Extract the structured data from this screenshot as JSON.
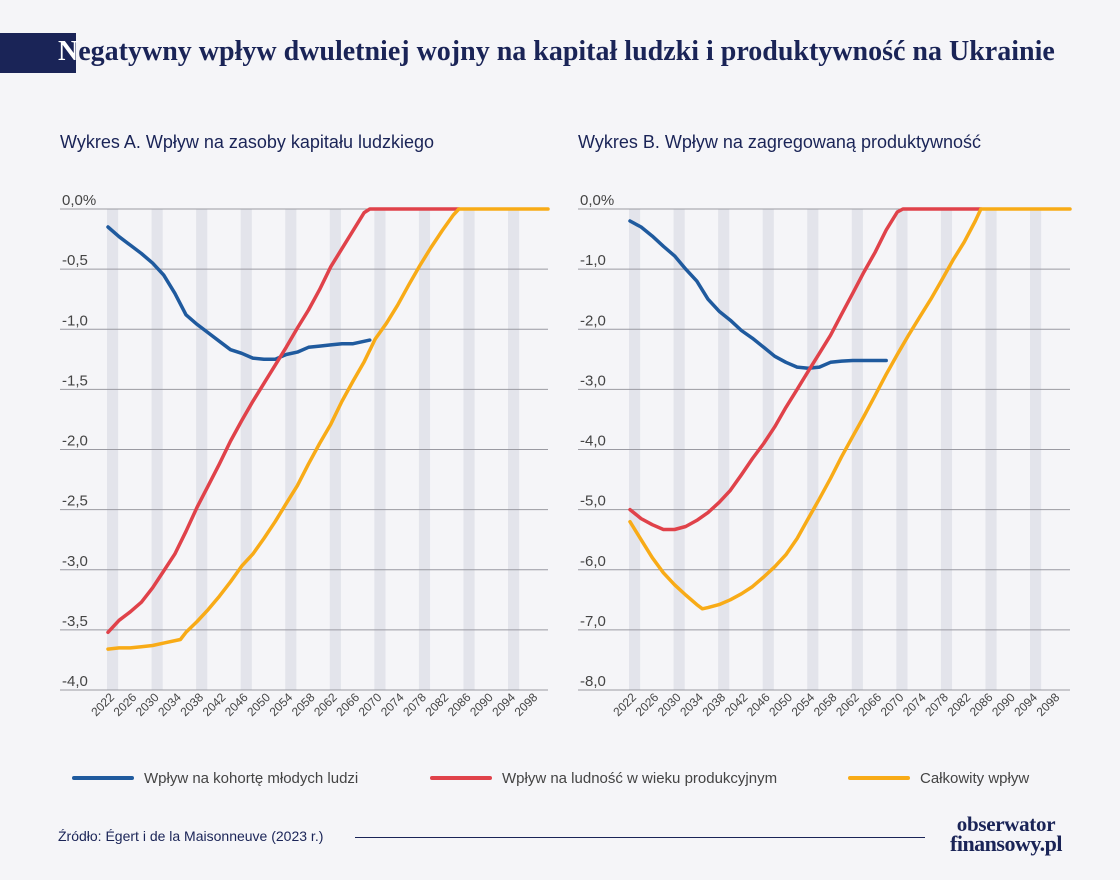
{
  "title": {
    "first_letter": "N",
    "rest": "egatywny wpływ dwuletniej wojny na kapitał ludzki i produktywność na Ukrainie"
  },
  "colors": {
    "title_bar": "#1a2457",
    "youth": "#1f5a9e",
    "working": "#e0424a",
    "total": "#f8ab17",
    "grid": "#9a9aa2",
    "band": "#e3e4eb"
  },
  "legend": {
    "youth": "Wpływ na kohortę młodych ludzi",
    "working": "Wpływ na ludność w wieku produkcyjnym",
    "total": "Całkowity wpływ"
  },
  "source": "Źródło: Égert i de la Maisonneuve (2023 r.)",
  "logo": {
    "line1": "obserwator",
    "line2": "finansowy.pl"
  },
  "chart_data": [
    {
      "type": "line",
      "title": "Wykres A. Wpływ na zasoby kapitału ludzkiego",
      "y_tick_labels": [
        "0,0%",
        "-0,5",
        "-1,0",
        "-1,5",
        "-2,0",
        "-2,5",
        "-3,0",
        "-3,5",
        "-4,0"
      ],
      "ylim": [
        -4.0,
        0.0
      ],
      "x_tick_labels": [
        "2022",
        "2026",
        "2030",
        "2034",
        "2038",
        "2042",
        "2046",
        "2050",
        "2054",
        "2058",
        "2062",
        "2066",
        "2070",
        "2074",
        "2078",
        "2082",
        "2086",
        "2090",
        "2094",
        "2098"
      ],
      "xlim": [
        2022,
        2101
      ],
      "series": [
        {
          "name": "Wpływ na kohortę młodych ludzi",
          "key": "youth",
          "points": [
            [
              2022,
              -0.15
            ],
            [
              2024,
              -0.23
            ],
            [
              2026,
              -0.3
            ],
            [
              2028,
              -0.37
            ],
            [
              2030,
              -0.45
            ],
            [
              2032,
              -0.55
            ],
            [
              2034,
              -0.7
            ],
            [
              2036,
              -0.88
            ],
            [
              2038,
              -0.96
            ],
            [
              2040,
              -1.03
            ],
            [
              2042,
              -1.1
            ],
            [
              2044,
              -1.17
            ],
            [
              2046,
              -1.2
            ],
            [
              2048,
              -1.24
            ],
            [
              2050,
              -1.25
            ],
            [
              2052,
              -1.25
            ],
            [
              2054,
              -1.21
            ],
            [
              2056,
              -1.19
            ],
            [
              2058,
              -1.15
            ],
            [
              2060,
              -1.14
            ],
            [
              2062,
              -1.13
            ],
            [
              2064,
              -1.12
            ],
            [
              2066,
              -1.12
            ],
            [
              2069,
              -1.09
            ]
          ]
        },
        {
          "name": "Wpływ na ludność w wieku produkcyjnym",
          "key": "working",
          "points": [
            [
              2022,
              -3.52
            ],
            [
              2024,
              -3.42
            ],
            [
              2026,
              -3.35
            ],
            [
              2028,
              -3.27
            ],
            [
              2030,
              -3.15
            ],
            [
              2032,
              -3.01
            ],
            [
              2034,
              -2.87
            ],
            [
              2036,
              -2.68
            ],
            [
              2038,
              -2.48
            ],
            [
              2040,
              -2.3
            ],
            [
              2042,
              -2.12
            ],
            [
              2044,
              -1.93
            ],
            [
              2046,
              -1.76
            ],
            [
              2048,
              -1.6
            ],
            [
              2050,
              -1.45
            ],
            [
              2052,
              -1.3
            ],
            [
              2054,
              -1.15
            ],
            [
              2056,
              -0.99
            ],
            [
              2058,
              -0.84
            ],
            [
              2060,
              -0.67
            ],
            [
              2062,
              -0.48
            ],
            [
              2064,
              -0.33
            ],
            [
              2066,
              -0.18
            ],
            [
              2068,
              -0.03
            ],
            [
              2069,
              0.0
            ],
            [
              2085,
              0.0
            ]
          ]
        },
        {
          "name": "Całkowity wpływ",
          "key": "total",
          "points": [
            [
              2022,
              -3.66
            ],
            [
              2024,
              -3.65
            ],
            [
              2026,
              -3.65
            ],
            [
              2028,
              -3.64
            ],
            [
              2030,
              -3.63
            ],
            [
              2032,
              -3.61
            ],
            [
              2035,
              -3.58
            ],
            [
              2036,
              -3.52
            ],
            [
              2038,
              -3.43
            ],
            [
              2040,
              -3.33
            ],
            [
              2042,
              -3.22
            ],
            [
              2044,
              -3.1
            ],
            [
              2046,
              -2.97
            ],
            [
              2048,
              -2.87
            ],
            [
              2050,
              -2.74
            ],
            [
              2052,
              -2.6
            ],
            [
              2054,
              -2.45
            ],
            [
              2056,
              -2.3
            ],
            [
              2058,
              -2.12
            ],
            [
              2060,
              -1.95
            ],
            [
              2062,
              -1.79
            ],
            [
              2064,
              -1.6
            ],
            [
              2066,
              -1.43
            ],
            [
              2068,
              -1.27
            ],
            [
              2070,
              -1.08
            ],
            [
              2072,
              -0.95
            ],
            [
              2074,
              -0.8
            ],
            [
              2076,
              -0.63
            ],
            [
              2078,
              -0.47
            ],
            [
              2080,
              -0.32
            ],
            [
              2082,
              -0.18
            ],
            [
              2084,
              -0.05
            ],
            [
              2085,
              0.0
            ],
            [
              2101,
              0.0
            ]
          ]
        }
      ]
    },
    {
      "type": "line",
      "title": "Wykres B. Wpływ na zagregowaną produktywność",
      "y_tick_labels": [
        "0,0%",
        "-1,0",
        "-2,0",
        "-3,0",
        "-4,0",
        "-5,0",
        "-6,0",
        "-7,0",
        "-8,0"
      ],
      "ylim": [
        -8.0,
        0.0
      ],
      "x_tick_labels": [
        "2022",
        "2026",
        "2030",
        "2034",
        "2038",
        "2042",
        "2046",
        "2050",
        "2054",
        "2058",
        "2062",
        "2066",
        "2070",
        "2074",
        "2078",
        "2082",
        "2086",
        "2090",
        "2094",
        "2098"
      ],
      "xlim": [
        2022,
        2101
      ],
      "series": [
        {
          "name": "Wpływ na kohortę młodych ludzi",
          "key": "youth",
          "points": [
            [
              2022,
              -0.2
            ],
            [
              2024,
              -0.3
            ],
            [
              2026,
              -0.45
            ],
            [
              2028,
              -0.62
            ],
            [
              2030,
              -0.78
            ],
            [
              2032,
              -1.0
            ],
            [
              2034,
              -1.2
            ],
            [
              2036,
              -1.5
            ],
            [
              2038,
              -1.7
            ],
            [
              2040,
              -1.85
            ],
            [
              2042,
              -2.02
            ],
            [
              2044,
              -2.15
            ],
            [
              2046,
              -2.3
            ],
            [
              2048,
              -2.45
            ],
            [
              2050,
              -2.55
            ],
            [
              2052,
              -2.63
            ],
            [
              2054,
              -2.65
            ],
            [
              2056,
              -2.63
            ],
            [
              2058,
              -2.55
            ],
            [
              2060,
              -2.53
            ],
            [
              2062,
              -2.52
            ],
            [
              2064,
              -2.52
            ],
            [
              2066,
              -2.52
            ],
            [
              2068,
              -2.52
            ]
          ]
        },
        {
          "name": "Wpływ na ludność w wieku produkcyjnym",
          "key": "working",
          "points": [
            [
              2022,
              -5.0
            ],
            [
              2024,
              -5.15
            ],
            [
              2026,
              -5.25
            ],
            [
              2028,
              -5.33
            ],
            [
              2030,
              -5.33
            ],
            [
              2032,
              -5.28
            ],
            [
              2034,
              -5.18
            ],
            [
              2036,
              -5.05
            ],
            [
              2038,
              -4.88
            ],
            [
              2040,
              -4.68
            ],
            [
              2042,
              -4.42
            ],
            [
              2044,
              -4.15
            ],
            [
              2046,
              -3.9
            ],
            [
              2048,
              -3.62
            ],
            [
              2050,
              -3.3
            ],
            [
              2052,
              -3.0
            ],
            [
              2054,
              -2.7
            ],
            [
              2056,
              -2.4
            ],
            [
              2058,
              -2.1
            ],
            [
              2060,
              -1.75
            ],
            [
              2062,
              -1.4
            ],
            [
              2064,
              -1.05
            ],
            [
              2066,
              -0.72
            ],
            [
              2068,
              -0.35
            ],
            [
              2070,
              -0.05
            ],
            [
              2071,
              0.0
            ],
            [
              2085,
              0.0
            ]
          ]
        },
        {
          "name": "Całkowity wpływ",
          "key": "total",
          "points": [
            [
              2022,
              -5.2
            ],
            [
              2024,
              -5.5
            ],
            [
              2026,
              -5.8
            ],
            [
              2028,
              -6.05
            ],
            [
              2030,
              -6.25
            ],
            [
              2032,
              -6.42
            ],
            [
              2034,
              -6.58
            ],
            [
              2035,
              -6.65
            ],
            [
              2036,
              -6.63
            ],
            [
              2038,
              -6.58
            ],
            [
              2040,
              -6.5
            ],
            [
              2042,
              -6.4
            ],
            [
              2044,
              -6.28
            ],
            [
              2046,
              -6.12
            ],
            [
              2048,
              -5.95
            ],
            [
              2050,
              -5.75
            ],
            [
              2052,
              -5.48
            ],
            [
              2054,
              -5.15
            ],
            [
              2056,
              -4.82
            ],
            [
              2058,
              -4.48
            ],
            [
              2060,
              -4.12
            ],
            [
              2062,
              -3.78
            ],
            [
              2064,
              -3.45
            ],
            [
              2066,
              -3.1
            ],
            [
              2068,
              -2.75
            ],
            [
              2070,
              -2.42
            ],
            [
              2072,
              -2.1
            ],
            [
              2074,
              -1.8
            ],
            [
              2076,
              -1.5
            ],
            [
              2078,
              -1.18
            ],
            [
              2080,
              -0.85
            ],
            [
              2082,
              -0.55
            ],
            [
              2084,
              -0.2
            ],
            [
              2085,
              0.0
            ],
            [
              2101,
              0.0
            ]
          ]
        }
      ]
    }
  ]
}
